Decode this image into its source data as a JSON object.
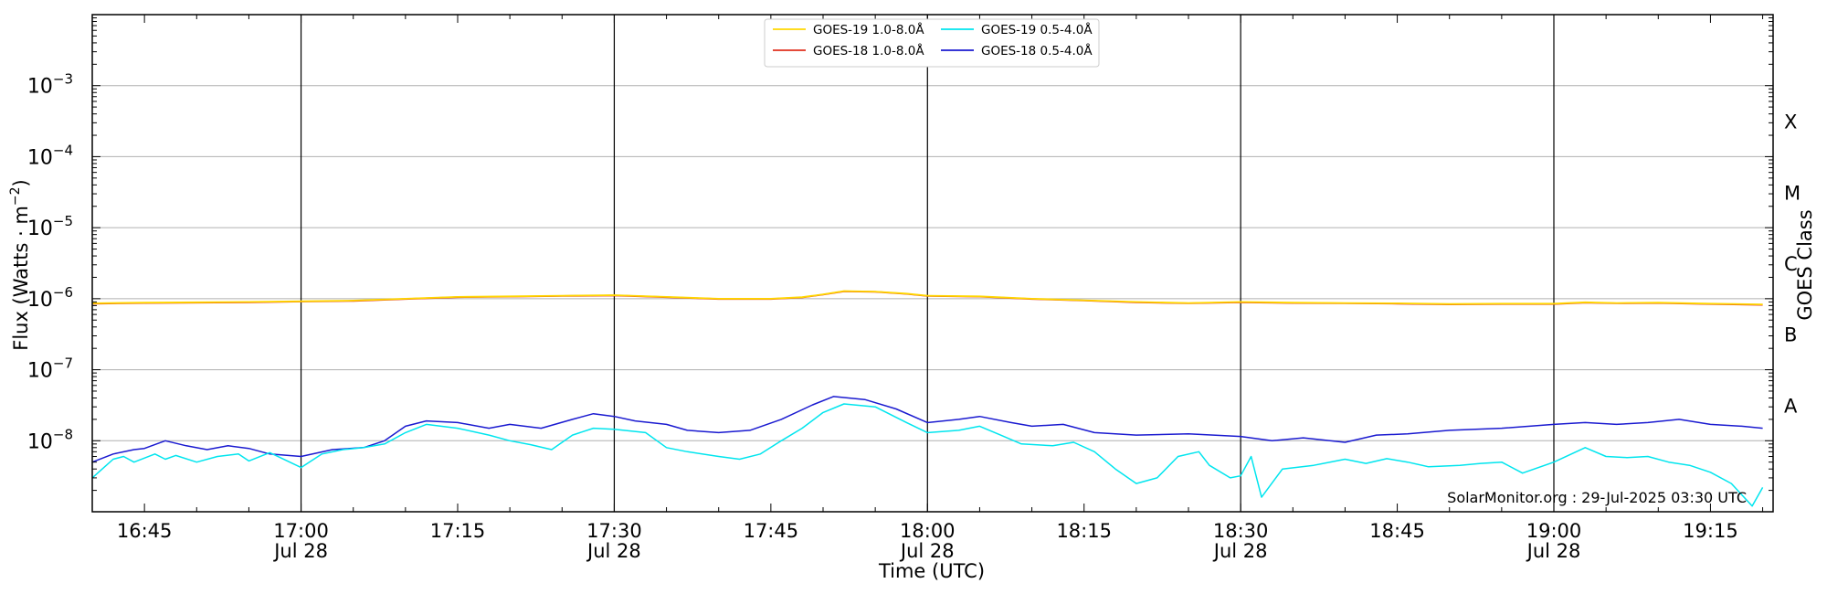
{
  "chart_data": {
    "type": "line",
    "title": "",
    "xlabel": "Time (UTC)",
    "ylabel": "Flux (Watts · m⁻²)",
    "y2label": "GOES Class",
    "yscale": "log",
    "ylim": [
      1e-09,
      0.01
    ],
    "xlim": [
      "16:40",
      "19:21"
    ],
    "grid": true,
    "legend_position": "top-center",
    "x_ticks": [
      {
        "time": "16:45",
        "label": "16:45",
        "date": ""
      },
      {
        "time": "17:00",
        "label": "17:00",
        "date": "Jul 28"
      },
      {
        "time": "17:15",
        "label": "17:15",
        "date": ""
      },
      {
        "time": "17:30",
        "label": "17:30",
        "date": "Jul 28"
      },
      {
        "time": "17:45",
        "label": "17:45",
        "date": ""
      },
      {
        "time": "18:00",
        "label": "18:00",
        "date": "Jul 28"
      },
      {
        "time": "18:15",
        "label": "18:15",
        "date": ""
      },
      {
        "time": "18:30",
        "label": "18:30",
        "date": "Jul 28"
      },
      {
        "time": "18:45",
        "label": "18:45",
        "date": ""
      },
      {
        "time": "19:00",
        "label": "19:00",
        "date": "Jul 28"
      },
      {
        "time": "19:15",
        "label": "19:15",
        "date": ""
      }
    ],
    "vertical_lines": [
      "17:00",
      "17:30",
      "18:00",
      "18:30",
      "19:00"
    ],
    "y_ticks": [
      {
        "value": 0.001,
        "base": "10",
        "exp": "−3"
      },
      {
        "value": 0.0001,
        "base": "10",
        "exp": "−4"
      },
      {
        "value": 1e-05,
        "base": "10",
        "exp": "−5"
      },
      {
        "value": 1e-06,
        "base": "10",
        "exp": "−6"
      },
      {
        "value": 1e-07,
        "base": "10",
        "exp": "−7"
      },
      {
        "value": 1e-08,
        "base": "10",
        "exp": "−8"
      }
    ],
    "goes_classes": [
      {
        "label": "X",
        "value": 0.000316
      },
      {
        "label": "M",
        "value": 3.16e-05
      },
      {
        "label": "C",
        "value": 3.16e-06
      },
      {
        "label": "B",
        "value": 3.16e-07
      },
      {
        "label": "A",
        "value": 3.16e-08
      }
    ],
    "series": [
      {
        "name": "GOES-19 1.0-8.0Å",
        "color": "#ffd700",
        "points": [
          [
            "16:40",
            8.6e-07
          ],
          [
            "16:45",
            8.8e-07
          ],
          [
            "16:50",
            8.9e-07
          ],
          [
            "16:55",
            9e-07
          ],
          [
            "17:00",
            9.2e-07
          ],
          [
            "17:05",
            9.4e-07
          ],
          [
            "17:10",
            1e-06
          ],
          [
            "17:15",
            1.06e-06
          ],
          [
            "17:20",
            1.08e-06
          ],
          [
            "17:25",
            1.1e-06
          ],
          [
            "17:30",
            1.12e-06
          ],
          [
            "17:35",
            1.06e-06
          ],
          [
            "17:40",
            1e-06
          ],
          [
            "17:45",
            1e-06
          ],
          [
            "17:48",
            1.05e-06
          ],
          [
            "17:50",
            1.15e-06
          ],
          [
            "17:52",
            1.28e-06
          ],
          [
            "17:55",
            1.26e-06
          ],
          [
            "17:58",
            1.18e-06
          ],
          [
            "18:00",
            1.1e-06
          ],
          [
            "18:05",
            1.08e-06
          ],
          [
            "18:10",
            1e-06
          ],
          [
            "18:15",
            9.5e-07
          ],
          [
            "18:20",
            9e-07
          ],
          [
            "18:25",
            8.7e-07
          ],
          [
            "18:30",
            9e-07
          ],
          [
            "18:35",
            8.8e-07
          ],
          [
            "18:40",
            8.7e-07
          ],
          [
            "18:45",
            8.6e-07
          ],
          [
            "18:50",
            8.4e-07
          ],
          [
            "18:55",
            8.5e-07
          ],
          [
            "19:00",
            8.5e-07
          ],
          [
            "19:03",
            8.9e-07
          ],
          [
            "19:06",
            8.7e-07
          ],
          [
            "19:10",
            8.8e-07
          ],
          [
            "19:15",
            8.5e-07
          ],
          [
            "19:20",
            8.3e-07
          ]
        ]
      },
      {
        "name": "GOES-18 1.0-8.0Å",
        "color": "#e0301e",
        "points": [
          [
            "16:40",
            8.5e-07
          ],
          [
            "16:45",
            8.7e-07
          ],
          [
            "16:50",
            8.8e-07
          ],
          [
            "16:55",
            8.9e-07
          ],
          [
            "17:00",
            9.1e-07
          ],
          [
            "17:05",
            9.3e-07
          ],
          [
            "17:10",
            9.9e-07
          ],
          [
            "17:15",
            1.05e-06
          ],
          [
            "17:20",
            1.07e-06
          ],
          [
            "17:25",
            1.09e-06
          ],
          [
            "17:30",
            1.11e-06
          ],
          [
            "17:35",
            1.05e-06
          ],
          [
            "17:40",
            9.9e-07
          ],
          [
            "17:45",
            9.9e-07
          ],
          [
            "17:48",
            1.04e-06
          ],
          [
            "17:50",
            1.14e-06
          ],
          [
            "17:52",
            1.27e-06
          ],
          [
            "17:55",
            1.25e-06
          ],
          [
            "17:58",
            1.17e-06
          ],
          [
            "18:00",
            1.09e-06
          ],
          [
            "18:05",
            1.07e-06
          ],
          [
            "18:10",
            9.9e-07
          ],
          [
            "18:15",
            9.4e-07
          ],
          [
            "18:20",
            8.9e-07
          ],
          [
            "18:25",
            8.6e-07
          ],
          [
            "18:30",
            8.9e-07
          ],
          [
            "18:35",
            8.7e-07
          ],
          [
            "18:40",
            8.6e-07
          ],
          [
            "18:45",
            8.5e-07
          ],
          [
            "18:50",
            8.3e-07
          ],
          [
            "18:55",
            8.4e-07
          ],
          [
            "19:00",
            8.4e-07
          ],
          [
            "19:03",
            8.8e-07
          ],
          [
            "19:06",
            8.6e-07
          ],
          [
            "19:10",
            8.7e-07
          ],
          [
            "19:15",
            8.4e-07
          ],
          [
            "19:20",
            8.2e-07
          ]
        ]
      },
      {
        "name": "GOES-19 0.5-4.0Å",
        "color": "#00e5ee",
        "points": [
          [
            "16:40",
            3e-09
          ],
          [
            "16:42",
            5.5e-09
          ],
          [
            "16:43",
            6e-09
          ],
          [
            "16:44",
            5e-09
          ],
          [
            "16:46",
            6.5e-09
          ],
          [
            "16:47",
            5.5e-09
          ],
          [
            "16:48",
            6.2e-09
          ],
          [
            "16:50",
            5e-09
          ],
          [
            "16:52",
            6e-09
          ],
          [
            "16:54",
            6.5e-09
          ],
          [
            "16:55",
            5.2e-09
          ],
          [
            "16:57",
            6.8e-09
          ],
          [
            "16:58",
            5.8e-09
          ],
          [
            "17:00",
            4.2e-09
          ],
          [
            "17:02",
            6.5e-09
          ],
          [
            "17:04",
            7.5e-09
          ],
          [
            "17:06",
            8e-09
          ],
          [
            "17:08",
            9e-09
          ],
          [
            "17:10",
            1.3e-08
          ],
          [
            "17:12",
            1.7e-08
          ],
          [
            "17:15",
            1.5e-08
          ],
          [
            "17:18",
            1.2e-08
          ],
          [
            "17:20",
            1e-08
          ],
          [
            "17:22",
            8.8e-09
          ],
          [
            "17:24",
            7.5e-09
          ],
          [
            "17:26",
            1.2e-08
          ],
          [
            "17:28",
            1.5e-08
          ],
          [
            "17:30",
            1.45e-08
          ],
          [
            "17:33",
            1.3e-08
          ],
          [
            "17:35",
            8e-09
          ],
          [
            "17:37",
            7e-09
          ],
          [
            "17:40",
            6e-09
          ],
          [
            "17:42",
            5.5e-09
          ],
          [
            "17:44",
            6.5e-09
          ],
          [
            "17:46",
            1e-08
          ],
          [
            "17:48",
            1.5e-08
          ],
          [
            "17:50",
            2.5e-08
          ],
          [
            "17:52",
            3.3e-08
          ],
          [
            "17:55",
            3e-08
          ],
          [
            "17:58",
            1.8e-08
          ],
          [
            "18:00",
            1.3e-08
          ],
          [
            "18:03",
            1.4e-08
          ],
          [
            "18:05",
            1.6e-08
          ],
          [
            "18:07",
            1.2e-08
          ],
          [
            "18:09",
            9e-09
          ],
          [
            "18:12",
            8.5e-09
          ],
          [
            "18:14",
            9.5e-09
          ],
          [
            "18:16",
            7e-09
          ],
          [
            "18:18",
            4e-09
          ],
          [
            "18:20",
            2.5e-09
          ],
          [
            "18:22",
            3e-09
          ],
          [
            "18:24",
            6e-09
          ],
          [
            "18:26",
            7e-09
          ],
          [
            "18:27",
            4.5e-09
          ],
          [
            "18:29",
            3e-09
          ],
          [
            "18:30",
            3.2e-09
          ],
          [
            "18:31",
            6e-09
          ],
          [
            "18:32",
            1.6e-09
          ],
          [
            "18:34",
            4e-09
          ],
          [
            "18:37",
            4.5e-09
          ],
          [
            "18:40",
            5.5e-09
          ],
          [
            "18:42",
            4.8e-09
          ],
          [
            "18:44",
            5.6e-09
          ],
          [
            "18:46",
            5e-09
          ],
          [
            "18:48",
            4.3e-09
          ],
          [
            "18:51",
            4.5e-09
          ],
          [
            "18:53",
            4.8e-09
          ],
          [
            "18:55",
            5e-09
          ],
          [
            "18:57",
            3.5e-09
          ],
          [
            "19:00",
            5e-09
          ],
          [
            "19:03",
            8e-09
          ],
          [
            "19:05",
            6e-09
          ],
          [
            "19:07",
            5.8e-09
          ],
          [
            "19:09",
            6e-09
          ],
          [
            "19:11",
            5e-09
          ],
          [
            "19:13",
            4.5e-09
          ],
          [
            "19:15",
            3.6e-09
          ],
          [
            "19:17",
            2.5e-09
          ],
          [
            "19:19",
            1.2e-09
          ],
          [
            "19:20",
            2.2e-09
          ]
        ]
      },
      {
        "name": "GOES-18 0.5-4.0Å",
        "color": "#1a1ad0",
        "points": [
          [
            "16:40",
            5e-09
          ],
          [
            "16:42",
            6.5e-09
          ],
          [
            "16:44",
            7.5e-09
          ],
          [
            "16:45",
            7.8e-09
          ],
          [
            "16:47",
            1e-08
          ],
          [
            "16:49",
            8.5e-09
          ],
          [
            "16:51",
            7.5e-09
          ],
          [
            "16:53",
            8.5e-09
          ],
          [
            "16:55",
            7.8e-09
          ],
          [
            "16:57",
            6.5e-09
          ],
          [
            "17:00",
            6e-09
          ],
          [
            "17:03",
            7.5e-09
          ],
          [
            "17:06",
            8e-09
          ],
          [
            "17:08",
            1e-08
          ],
          [
            "17:10",
            1.6e-08
          ],
          [
            "17:12",
            1.9e-08
          ],
          [
            "17:15",
            1.8e-08
          ],
          [
            "17:18",
            1.5e-08
          ],
          [
            "17:20",
            1.7e-08
          ],
          [
            "17:23",
            1.5e-08
          ],
          [
            "17:26",
            2e-08
          ],
          [
            "17:28",
            2.4e-08
          ],
          [
            "17:30",
            2.2e-08
          ],
          [
            "17:32",
            1.9e-08
          ],
          [
            "17:35",
            1.7e-08
          ],
          [
            "17:37",
            1.4e-08
          ],
          [
            "17:40",
            1.3e-08
          ],
          [
            "17:43",
            1.4e-08
          ],
          [
            "17:46",
            2e-08
          ],
          [
            "17:49",
            3.2e-08
          ],
          [
            "17:51",
            4.2e-08
          ],
          [
            "17:54",
            3.8e-08
          ],
          [
            "17:57",
            2.8e-08
          ],
          [
            "18:00",
            1.8e-08
          ],
          [
            "18:03",
            2e-08
          ],
          [
            "18:05",
            2.2e-08
          ],
          [
            "18:08",
            1.8e-08
          ],
          [
            "18:10",
            1.6e-08
          ],
          [
            "18:13",
            1.7e-08
          ],
          [
            "18:16",
            1.3e-08
          ],
          [
            "18:20",
            1.2e-08
          ],
          [
            "18:25",
            1.25e-08
          ],
          [
            "18:30",
            1.15e-08
          ],
          [
            "18:33",
            1e-08
          ],
          [
            "18:36",
            1.1e-08
          ],
          [
            "18:40",
            9.5e-09
          ],
          [
            "18:43",
            1.2e-08
          ],
          [
            "18:46",
            1.25e-08
          ],
          [
            "18:50",
            1.4e-08
          ],
          [
            "18:55",
            1.5e-08
          ],
          [
            "19:00",
            1.7e-08
          ],
          [
            "19:03",
            1.8e-08
          ],
          [
            "19:06",
            1.7e-08
          ],
          [
            "19:09",
            1.8e-08
          ],
          [
            "19:12",
            2e-08
          ],
          [
            "19:15",
            1.7e-08
          ],
          [
            "19:18",
            1.6e-08
          ],
          [
            "19:20",
            1.5e-08
          ]
        ]
      }
    ],
    "annotation": "SolarMonitor.org : 29-Jul-2025 03:30 UTC"
  }
}
